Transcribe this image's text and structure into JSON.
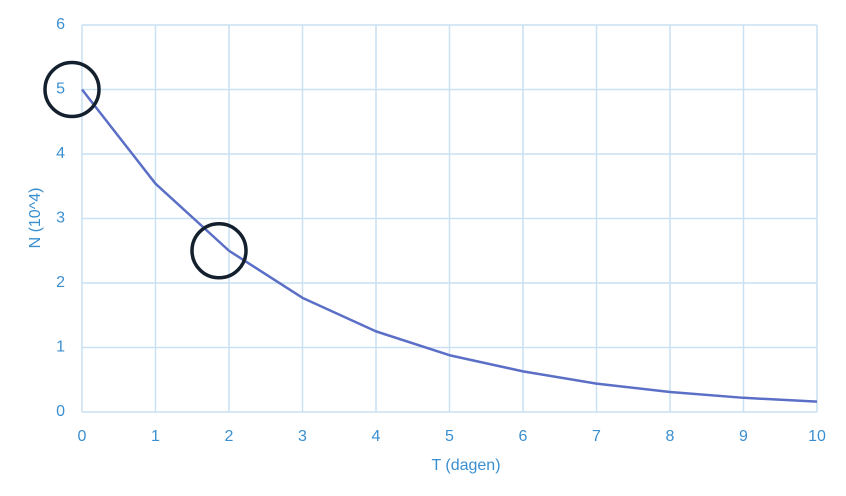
{
  "chart_data": {
    "type": "line",
    "x_label": "T (dagen)",
    "y_label": "N (10^4)",
    "x": [
      0,
      1,
      2,
      3,
      4,
      5,
      6,
      7,
      8,
      9,
      10
    ],
    "series": [
      {
        "color": "#5b6fc7",
        "values": [
          5,
          3.54,
          2.5,
          1.77,
          1.25,
          0.88,
          0.63,
          0.44,
          0.31,
          0.22,
          0.16
        ]
      }
    ],
    "xlim": [
      0,
      10
    ],
    "xticks": [
      0,
      1,
      2,
      3,
      4,
      5,
      6,
      7,
      8,
      9,
      10
    ],
    "ylim": [
      0,
      6
    ],
    "yticks": [
      0,
      1,
      2,
      3,
      4,
      5,
      6
    ],
    "grid": true
  }
}
